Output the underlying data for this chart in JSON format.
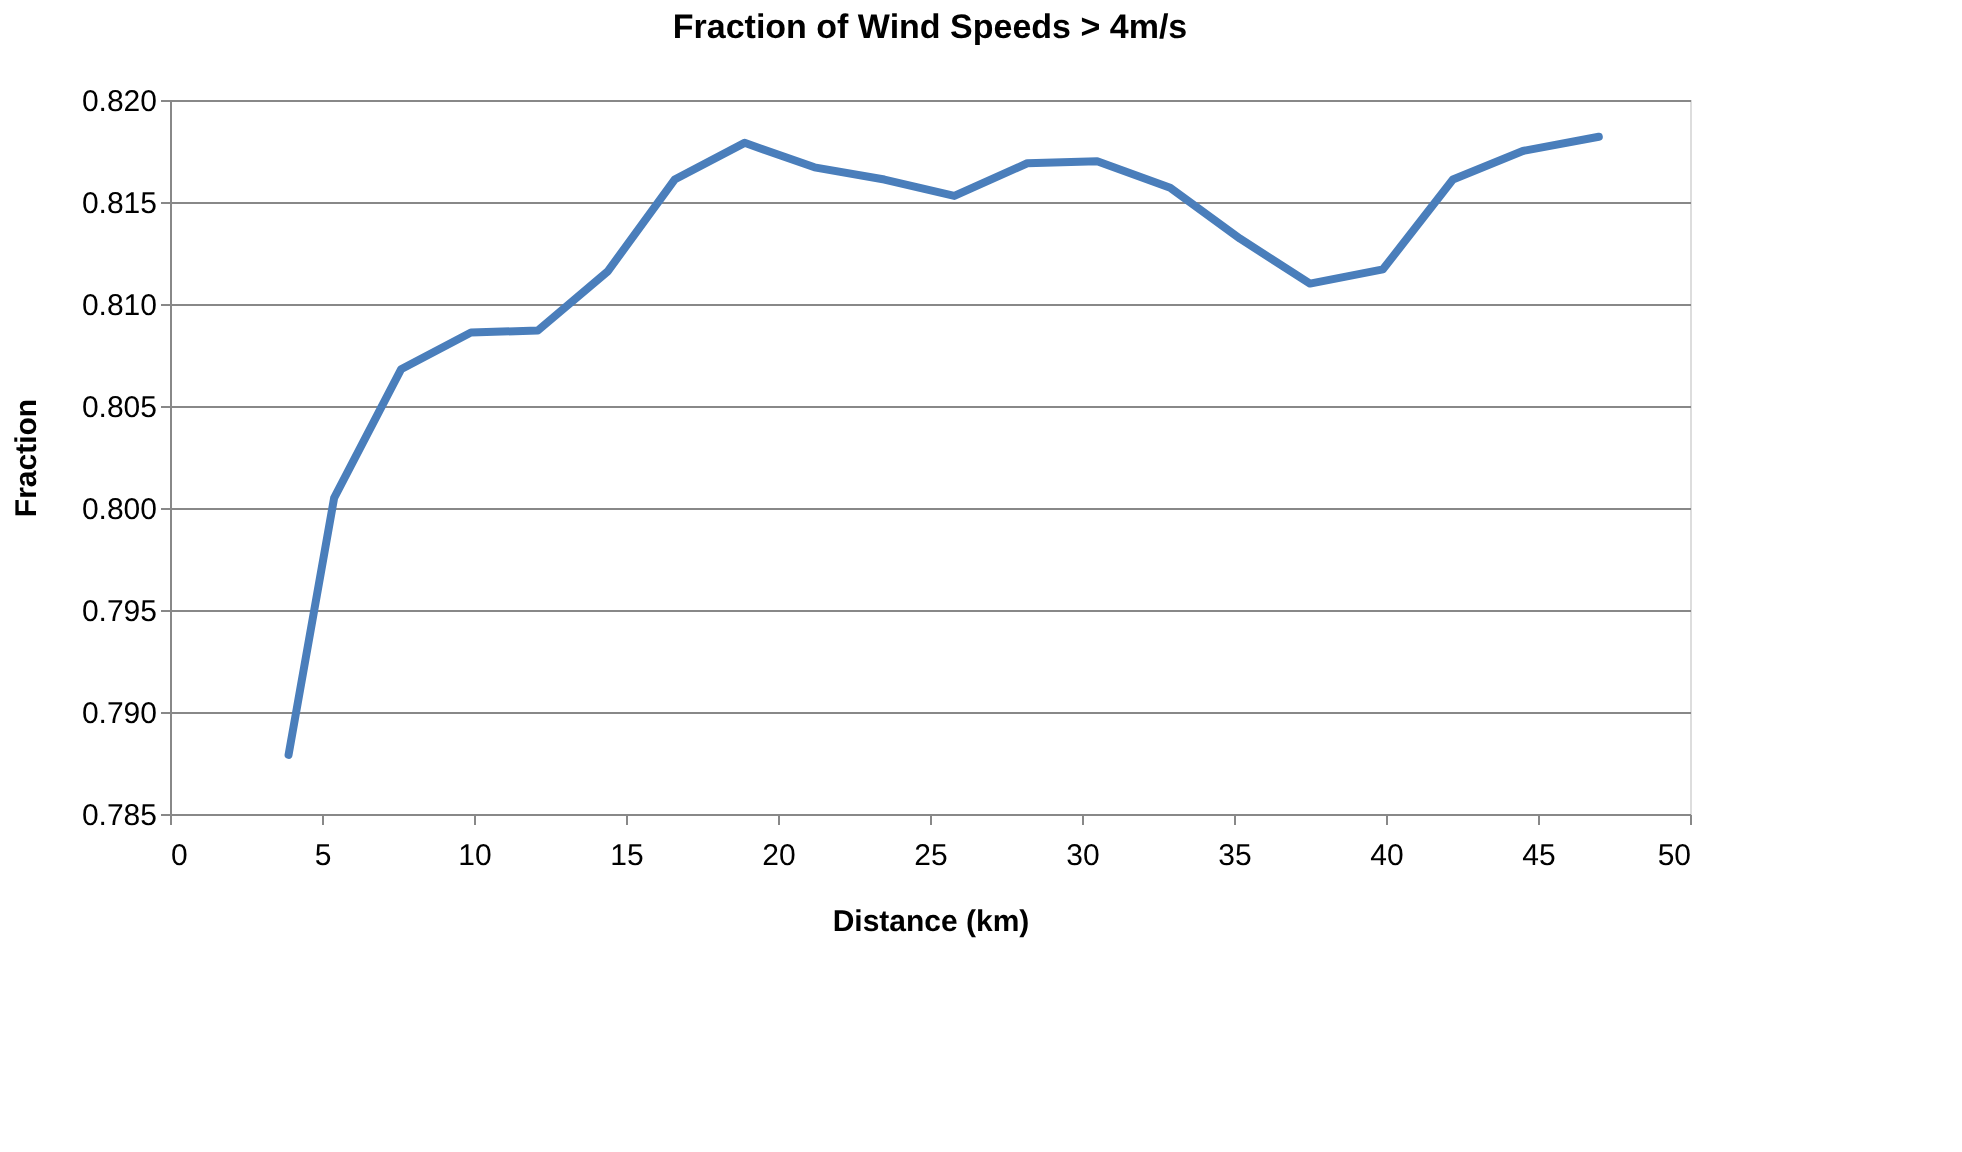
{
  "chart_data": {
    "type": "line",
    "title": "Fraction of Wind Speeds > 4m/s",
    "xlabel": "Distance (km)",
    "ylabel": "Fraction",
    "x": [
      3.9,
      5.4,
      7.6,
      9.9,
      12.1,
      14.4,
      16.6,
      18.9,
      21.2,
      23.5,
      25.8,
      28.2,
      30.5,
      32.9,
      35.2,
      37.5,
      39.9,
      42.2,
      44.5,
      47.0
    ],
    "series": [
      {
        "color": "#4a7ebb",
        "values": [
          0.7879,
          0.8005,
          0.8068,
          0.8086,
          0.8087,
          0.8116,
          0.8161,
          0.8179,
          0.8167,
          0.8161,
          0.8153,
          0.8169,
          0.817,
          0.8157,
          0.8132,
          0.811,
          0.8117,
          0.8161,
          0.8175,
          0.8182
        ]
      }
    ],
    "xlim": [
      0,
      50
    ],
    "xticks": [
      0,
      5,
      10,
      15,
      20,
      25,
      30,
      35,
      40,
      45,
      50
    ],
    "ylim": [
      0.785,
      0.82
    ],
    "yticks": [
      {
        "value": 0.785,
        "label": "0.785"
      },
      {
        "value": 0.79,
        "label": "0.790"
      },
      {
        "value": 0.795,
        "label": "0.795"
      },
      {
        "value": 0.8,
        "label": "0.800"
      },
      {
        "value": 0.805,
        "label": "0.805"
      },
      {
        "value": 0.81,
        "label": "0.810"
      },
      {
        "value": 0.815,
        "label": "0.815"
      },
      {
        "value": 0.82,
        "label": "0.820"
      }
    ],
    "grid": "y",
    "legend": false,
    "marker": "none",
    "line_style": "solid"
  }
}
